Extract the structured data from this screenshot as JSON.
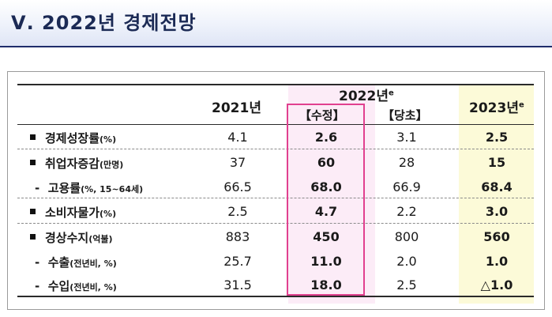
{
  "title": "Ⅴ. 2022년 경제전망",
  "header": {
    "col_2021": "2021년",
    "col_2022": "2022년",
    "col_2022_sup": "e",
    "col_revised": "【수정】",
    "col_initial": "【당초】",
    "col_2023": "2023년",
    "col_2023_sup": "e"
  },
  "rows": [
    {
      "label": "경제성장률",
      "unit": "(%)",
      "prefix": "bullet",
      "v2021": "4.1",
      "revised": "2.6",
      "initial": "3.1",
      "v2023": "2.5"
    },
    {
      "label": "취업자증감",
      "unit": "(만명)",
      "prefix": "bullet",
      "v2021": "37",
      "revised": "60",
      "initial": "28",
      "v2023": "15"
    },
    {
      "label": "고용률",
      "unit": "(%, 15~64세)",
      "prefix": "-",
      "v2021": "66.5",
      "revised": "68.0",
      "initial": "66.9",
      "v2023": "68.4"
    },
    {
      "label": "소비자물가",
      "unit": "(%)",
      "prefix": "bullet",
      "v2021": "2.5",
      "revised": "4.7",
      "initial": "2.2",
      "v2023": "3.0"
    },
    {
      "label": "경상수지",
      "unit": "(억불)",
      "prefix": "bullet",
      "v2021": "883",
      "revised": "450",
      "initial": "800",
      "v2023": "560"
    },
    {
      "label": "수출",
      "unit": "(전년비, %)",
      "prefix": "-",
      "v2021": "25.7",
      "revised": "11.0",
      "initial": "2.0",
      "v2023": "1.0"
    },
    {
      "label": "수입",
      "unit": "(전년비, %)",
      "prefix": "-",
      "v2021": "31.5",
      "revised": "18.0",
      "initial": "2.5",
      "v2023": "△1.0"
    }
  ]
}
